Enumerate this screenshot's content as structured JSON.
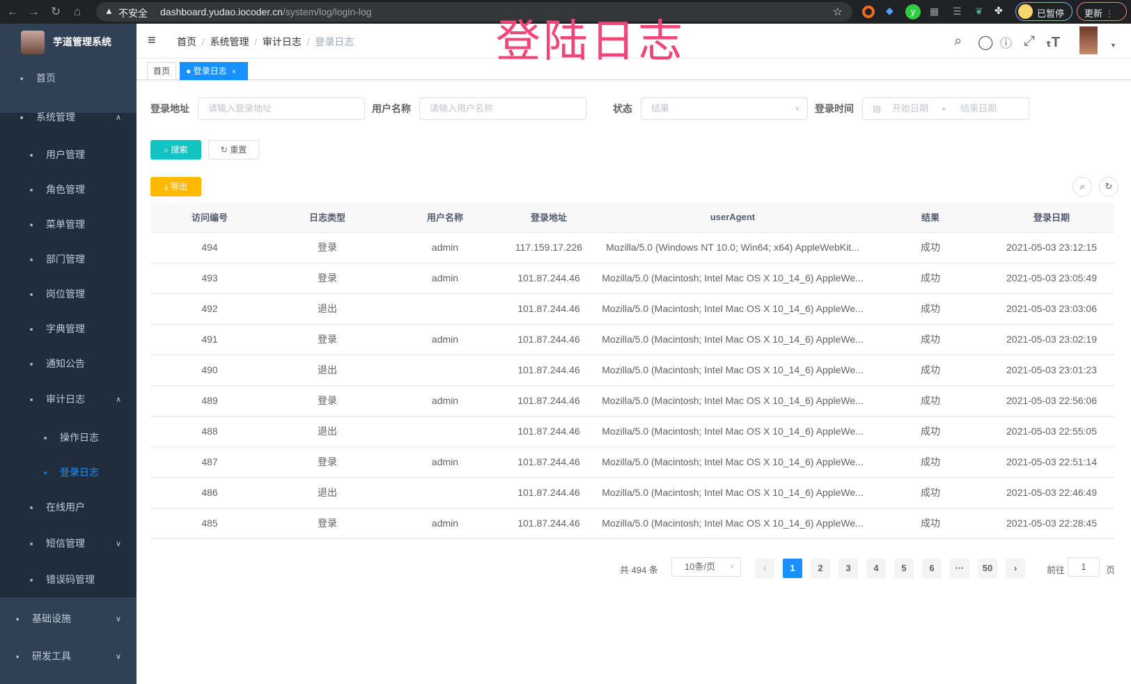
{
  "browser": {
    "warning": "不安全",
    "url_host": "dashboard.yudao.iocoder.cn",
    "url_path": "/system/log/login-log",
    "profile": "已暂停",
    "update": "更新"
  },
  "overlay_title": "登陆日志",
  "app": {
    "title": "芋道管理系统"
  },
  "sidebar": {
    "items": [
      {
        "label": "首页",
        "icon": "dashboard-icon"
      },
      {
        "label": "系统管理",
        "icon": "gear-icon"
      },
      {
        "label": "用户管理",
        "icon": "user-icon"
      },
      {
        "label": "角色管理",
        "icon": "peoples-icon"
      },
      {
        "label": "菜单管理",
        "icon": "tree-table-icon"
      },
      {
        "label": "部门管理",
        "icon": "tree-icon"
      },
      {
        "label": "岗位管理",
        "icon": "post-icon"
      },
      {
        "label": "字典管理",
        "icon": "dict-icon"
      },
      {
        "label": "通知公告",
        "icon": "message-icon"
      },
      {
        "label": "审计日志",
        "icon": "log-icon"
      },
      {
        "label": "操作日志",
        "icon": "form-icon"
      },
      {
        "label": "登录日志",
        "icon": "logininfor-icon"
      },
      {
        "label": "在线用户",
        "icon": "online-icon"
      },
      {
        "label": "短信管理",
        "icon": "validcode-icon"
      },
      {
        "label": "错误码管理",
        "icon": "code-icon"
      },
      {
        "label": "基础设施",
        "icon": "monitor-icon"
      },
      {
        "label": "研发工具",
        "icon": "tool-icon"
      }
    ]
  },
  "breadcrumb": [
    "首页",
    "系统管理",
    "审计日志",
    "登录日志"
  ],
  "tags": [
    "首页",
    "登录日志"
  ],
  "filters": {
    "address_label": "登录地址",
    "address_placeholder": "请输入登录地址",
    "username_label": "用户名称",
    "username_placeholder": "请输入用户名称",
    "status_label": "状态",
    "status_placeholder": "结果",
    "time_label": "登录时间",
    "start_placeholder": "开始日期",
    "sep": "-",
    "end_placeholder": "结束日期"
  },
  "buttons": {
    "search": "搜索",
    "reset": "重置",
    "export": "导出"
  },
  "colors": {
    "primary": "#1890ff",
    "search": "#13c2c2",
    "export": "#ffba00",
    "sidebar": "#304156"
  },
  "table": {
    "columns": [
      "访问编号",
      "日志类型",
      "用户名称",
      "登录地址",
      "userAgent",
      "结果",
      "登录日期"
    ],
    "rows": [
      [
        "494",
        "登录",
        "admin",
        "117.159.17.226",
        "Mozilla/5.0 (Windows NT 10.0; Win64; x64) AppleWebKit...",
        "成功",
        "2021-05-03 23:12:15"
      ],
      [
        "493",
        "登录",
        "admin",
        "101.87.244.46",
        "Mozilla/5.0 (Macintosh; Intel Mac OS X 10_14_6) AppleWe...",
        "成功",
        "2021-05-03 23:05:49"
      ],
      [
        "492",
        "退出",
        "",
        "101.87.244.46",
        "Mozilla/5.0 (Macintosh; Intel Mac OS X 10_14_6) AppleWe...",
        "成功",
        "2021-05-03 23:03:06"
      ],
      [
        "491",
        "登录",
        "admin",
        "101.87.244.46",
        "Mozilla/5.0 (Macintosh; Intel Mac OS X 10_14_6) AppleWe...",
        "成功",
        "2021-05-03 23:02:19"
      ],
      [
        "490",
        "退出",
        "",
        "101.87.244.46",
        "Mozilla/5.0 (Macintosh; Intel Mac OS X 10_14_6) AppleWe...",
        "成功",
        "2021-05-03 23:01:23"
      ],
      [
        "489",
        "登录",
        "admin",
        "101.87.244.46",
        "Mozilla/5.0 (Macintosh; Intel Mac OS X 10_14_6) AppleWe...",
        "成功",
        "2021-05-03 22:56:06"
      ],
      [
        "488",
        "退出",
        "",
        "101.87.244.46",
        "Mozilla/5.0 (Macintosh; Intel Mac OS X 10_14_6) AppleWe...",
        "成功",
        "2021-05-03 22:55:05"
      ],
      [
        "487",
        "登录",
        "admin",
        "101.87.244.46",
        "Mozilla/5.0 (Macintosh; Intel Mac OS X 10_14_6) AppleWe...",
        "成功",
        "2021-05-03 22:51:14"
      ],
      [
        "486",
        "退出",
        "",
        "101.87.244.46",
        "Mozilla/5.0 (Macintosh; Intel Mac OS X 10_14_6) AppleWe...",
        "成功",
        "2021-05-03 22:46:49"
      ],
      [
        "485",
        "登录",
        "admin",
        "101.87.244.46",
        "Mozilla/5.0 (Macintosh; Intel Mac OS X 10_14_6) AppleWe...",
        "成功",
        "2021-05-03 22:28:45"
      ]
    ]
  },
  "pagination": {
    "total": "共 494 条",
    "page_size": "10条/页",
    "pages": [
      "1",
      "2",
      "3",
      "4",
      "5",
      "6",
      "···",
      "50"
    ],
    "current": "1",
    "goto_label": "前往",
    "goto_value": "1",
    "goto_suffix": "页"
  }
}
